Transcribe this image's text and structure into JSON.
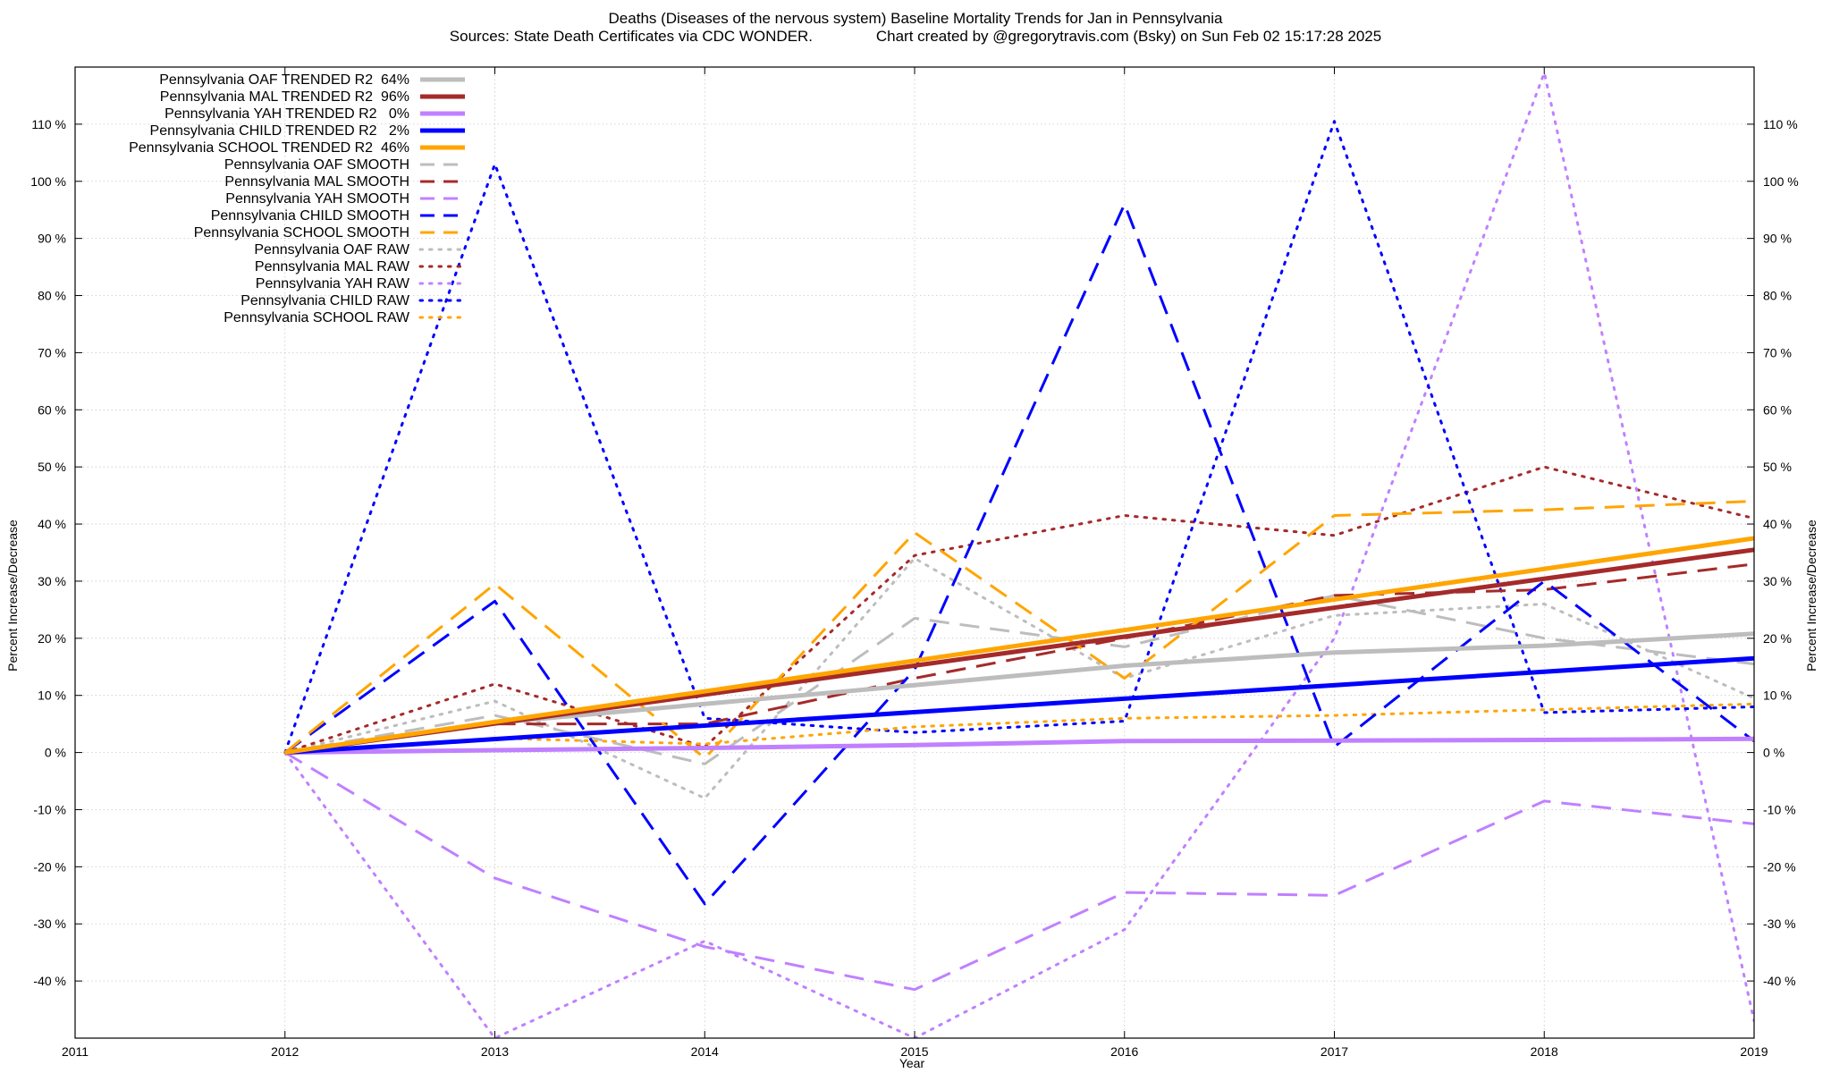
{
  "chart_data": {
    "type": "line",
    "title": "Deaths (Diseases of the nervous system)  Baseline Mortality Trends for Jan in Pennsylvania",
    "subtitle": "Sources: State Death Certificates via CDC WONDER.               Chart created by @gregorytravis.com (Bsky) on Sun Feb 02 15:17:28 2025",
    "xlabel": "Year",
    "ylabel_left": "Percent Increase/Decrease",
    "ylabel_right": "Percent Increase/Decrease",
    "xlim": [
      2011,
      2019
    ],
    "ylim": [
      -50,
      120
    ],
    "x_ticks": [
      "2011",
      "2012",
      "2013",
      "2014",
      "2015",
      "2016",
      "2017",
      "2018",
      "2019"
    ],
    "y_ticks": [
      {
        "value": -40,
        "label": "-40 %"
      },
      {
        "value": -30,
        "label": "-30 %"
      },
      {
        "value": -20,
        "label": "-20 %"
      },
      {
        "value": -10,
        "label": "-10 %"
      },
      {
        "value": 0,
        "label": "0 %"
      },
      {
        "value": 10,
        "label": "10 %"
      },
      {
        "value": 20,
        "label": "20 %"
      },
      {
        "value": 30,
        "label": "30 %"
      },
      {
        "value": 40,
        "label": "40 %"
      },
      {
        "value": 50,
        "label": "50 %"
      },
      {
        "value": 60,
        "label": "60 %"
      },
      {
        "value": 70,
        "label": "70 %"
      },
      {
        "value": 80,
        "label": "80 %"
      },
      {
        "value": 90,
        "label": "90 %"
      },
      {
        "value": 100,
        "label": "100 %"
      },
      {
        "value": 110,
        "label": "110 %"
      }
    ],
    "grid": true,
    "legend_position": "top-left",
    "series": [
      {
        "name": "Pennsylvania OAF TRENDED R2  64%",
        "style": "solid",
        "color": "#bdbdbd",
        "x": [
          2012,
          2013,
          2014,
          2015,
          2016,
          2017,
          2018,
          2019
        ],
        "y": [
          0,
          5.2,
          8.5,
          11.8,
          15.2,
          17.5,
          18.7,
          20.8
        ]
      },
      {
        "name": "Pennsylvania MAL TRENDED R2  96%",
        "style": "solid",
        "color": "#a52a2a",
        "x": [
          2012,
          2019
        ],
        "y": [
          0,
          35.5
        ]
      },
      {
        "name": "Pennsylvania YAH TRENDED R2   0%",
        "style": "solid",
        "color": "#c080ff",
        "x": [
          2012,
          2013,
          2014,
          2015,
          2016,
          2017,
          2018,
          2019
        ],
        "y": [
          0,
          0.4,
          0.8,
          1.3,
          2.0,
          2.1,
          2.2,
          2.4
        ]
      },
      {
        "name": "Pennsylvania CHILD TRENDED R2   2%",
        "style": "solid",
        "color": "#0000ff",
        "x": [
          2012,
          2019
        ],
        "y": [
          0,
          16.5
        ]
      },
      {
        "name": "Pennsylvania SCHOOL TRENDED R2  46%",
        "style": "solid",
        "color": "#ffa500",
        "x": [
          2012,
          2019
        ],
        "y": [
          0,
          37.5
        ]
      },
      {
        "name": "Pennsylvania OAF SMOOTH",
        "style": "dashed",
        "color": "#bdbdbd",
        "x": [
          2012,
          2013,
          2014,
          2015,
          2016,
          2017,
          2018,
          2019
        ],
        "y": [
          0,
          6.5,
          -2,
          23.5,
          18.5,
          27.5,
          20,
          15.5
        ]
      },
      {
        "name": "Pennsylvania MAL SMOOTH",
        "style": "dashed",
        "color": "#a52a2a",
        "x": [
          2012,
          2013,
          2014,
          2015,
          2016,
          2017,
          2018,
          2019
        ],
        "y": [
          0,
          5,
          5,
          13,
          20,
          27.5,
          28.5,
          33
        ]
      },
      {
        "name": "Pennsylvania YAH SMOOTH",
        "style": "dashed",
        "color": "#c080ff",
        "x": [
          2012,
          2013,
          2014,
          2015,
          2016,
          2017,
          2018,
          2019
        ],
        "y": [
          0,
          -22,
          -34,
          -41.5,
          -24.5,
          -25,
          -8.5,
          -12.5
        ]
      },
      {
        "name": "Pennsylvania CHILD SMOOTH",
        "style": "dashed",
        "color": "#0000ff",
        "x": [
          2012,
          2013,
          2014,
          2015,
          2016,
          2017,
          2018,
          2019
        ],
        "y": [
          0,
          26.5,
          -26.5,
          14.5,
          96,
          1,
          30,
          2
        ]
      },
      {
        "name": "Pennsylvania SCHOOL SMOOTH",
        "style": "dashed",
        "color": "#ffa500",
        "x": [
          2012,
          2013,
          2014,
          2015,
          2016,
          2017,
          2018,
          2019
        ],
        "y": [
          0,
          29.5,
          -1,
          38.5,
          13,
          41.5,
          42.5,
          44
        ]
      },
      {
        "name": "Pennsylvania OAF RAW",
        "style": "dotted",
        "color": "#bdbdbd",
        "x": [
          2012,
          2013,
          2014,
          2015,
          2016,
          2017,
          2018,
          2019
        ],
        "y": [
          0,
          9,
          -8,
          34,
          13,
          24,
          26,
          9.5
        ]
      },
      {
        "name": "Pennsylvania MAL RAW",
        "style": "dotted",
        "color": "#a52a2a",
        "x": [
          2012,
          2013,
          2014,
          2015,
          2016,
          2017,
          2018,
          2019
        ],
        "y": [
          0,
          12,
          1,
          34.5,
          41.5,
          38,
          50,
          41
        ]
      },
      {
        "name": "Pennsylvania YAH RAW",
        "style": "dotted",
        "color": "#c080ff",
        "x": [
          2012,
          2013,
          2014,
          2015,
          2016,
          2017,
          2018,
          2019
        ],
        "y": [
          0,
          -50,
          -33,
          -50,
          -31,
          20,
          119,
          -47
        ]
      },
      {
        "name": "Pennsylvania CHILD RAW",
        "style": "dotted",
        "color": "#0000ff",
        "x": [
          2012,
          2013,
          2014,
          2015,
          2016,
          2017,
          2018,
          2019
        ],
        "y": [
          0,
          103,
          6,
          3.5,
          5.5,
          110.5,
          7,
          8
        ]
      },
      {
        "name": "Pennsylvania SCHOOL RAW",
        "style": "dotted",
        "color": "#ffa500",
        "x": [
          2012,
          2013,
          2014,
          2015,
          2016,
          2017,
          2018,
          2019
        ],
        "y": [
          0,
          2.5,
          1.5,
          4.5,
          6,
          6.5,
          7.5,
          8.5
        ]
      }
    ]
  }
}
